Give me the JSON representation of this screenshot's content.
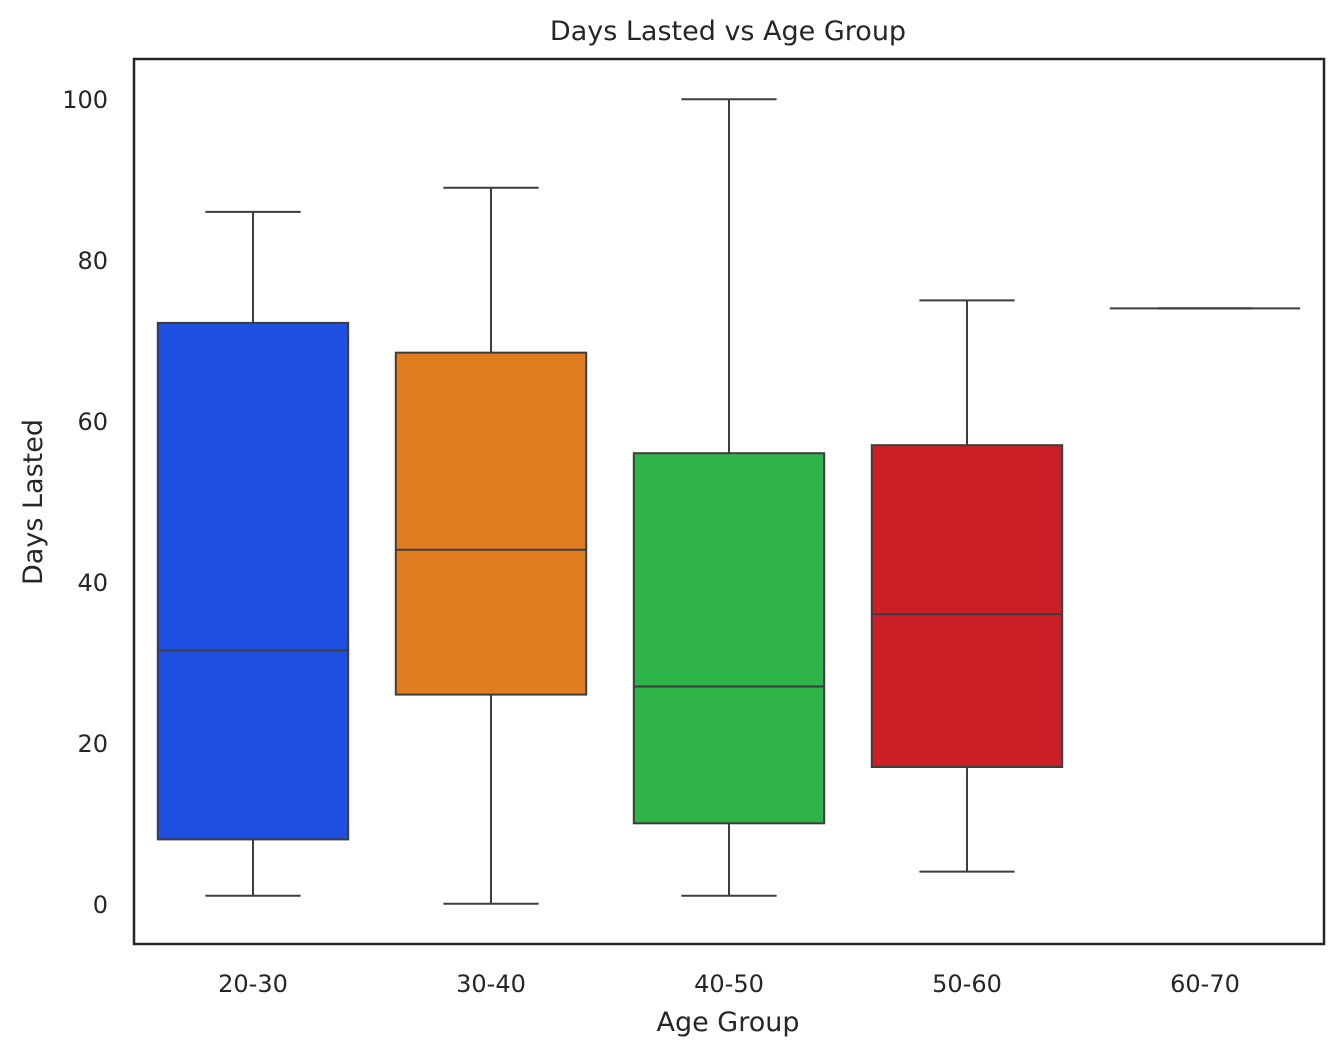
{
  "chart_data": {
    "type": "box",
    "title": "Days Lasted vs Age Group",
    "xlabel": "Age Group",
    "ylabel": "Days Lasted",
    "ylim": [
      -5,
      105
    ],
    "yticks": [
      0,
      20,
      40,
      60,
      80,
      100
    ],
    "grid": false,
    "categories": [
      "20-30",
      "30-40",
      "40-50",
      "50-60",
      "60-70"
    ],
    "boxes": [
      {
        "category": "20-30",
        "whisker_low": 1,
        "q1": 8,
        "median": 31.5,
        "q3": 72.2,
        "whisker_high": 86,
        "color": "#1f4fe0"
      },
      {
        "category": "30-40",
        "whisker_low": 0,
        "q1": 26,
        "median": 44,
        "q3": 68.5,
        "whisker_high": 89,
        "color": "#e07d20"
      },
      {
        "category": "40-50",
        "whisker_low": 1,
        "q1": 10,
        "median": 27,
        "q3": 56,
        "whisker_high": 100,
        "color": "#2fb44a"
      },
      {
        "category": "50-60",
        "whisker_low": 4,
        "q1": 17,
        "median": 36,
        "q3": 57,
        "whisker_high": 75,
        "color": "#cb1e27"
      },
      {
        "category": "60-70",
        "whisker_low": 74,
        "q1": 74,
        "median": 74,
        "q3": 74,
        "whisker_high": 74,
        "color": "#8c564b"
      }
    ],
    "line_color": "#3d3d3d"
  }
}
